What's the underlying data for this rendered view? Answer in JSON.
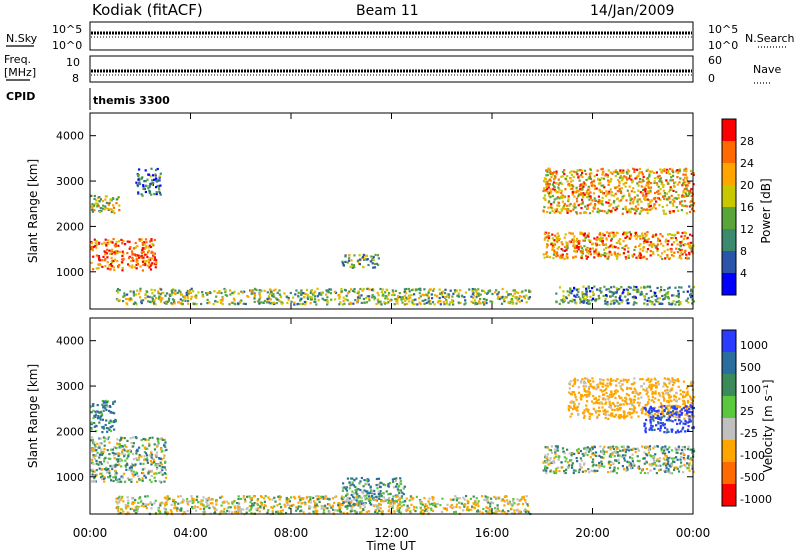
{
  "header": {
    "station": "Kodiak (fitACF)",
    "beam": "Beam 11",
    "date": "14/Jan/2009"
  },
  "top_panels": {
    "nsky_label": "N.Sky",
    "nsearch_label": "N.Search",
    "nsky_ticks": [
      "10^5",
      "10^0"
    ],
    "nsearch_ticks": [
      "10^5",
      "10^0"
    ],
    "freq_label": "Freq.",
    "freq_unit": "[MHz]",
    "freq_ticks": [
      "10",
      "8"
    ],
    "nave_label": "Nave",
    "nave_ticks": [
      "60",
      "0"
    ],
    "cpid_label": "CPID",
    "cpid_value": "themis 3300"
  },
  "chart_data": [
    {
      "type": "heatmap",
      "title": "",
      "xlabel": "Time UT",
      "ylabel": "Slant Range [km]",
      "colorbar_label": "Power [dB]",
      "xlim": [
        0,
        24
      ],
      "ylim": [
        180,
        4500
      ],
      "x_ticks": [
        "00:00",
        "04:00",
        "08:00",
        "12:00",
        "16:00",
        "20:00",
        "00:00"
      ],
      "y_ticks": [
        1000,
        2000,
        3000,
        4000
      ],
      "colorbar_ticks": [
        "4",
        "8",
        "12",
        "16",
        "20",
        "24",
        "28"
      ],
      "colorbar_range": [
        0,
        30
      ],
      "colors": [
        "#0000ff",
        "#2a55a8",
        "#3c8a6e",
        "#5aa53a",
        "#c8c800",
        "#ffa500",
        "#ff6a00",
        "#ff0000"
      ],
      "regions": [
        {
          "t": [
            0.0,
            2.6
          ],
          "r": [
            1050,
            1750
          ],
          "value": 24
        },
        {
          "t": [
            0.0,
            1.2
          ],
          "r": [
            2300,
            2700
          ],
          "value": 16
        },
        {
          "t": [
            1.8,
            2.8
          ],
          "r": [
            2700,
            3300
          ],
          "value": 8
        },
        {
          "t": [
            10.0,
            11.5
          ],
          "r": [
            1100,
            1400
          ],
          "value": 12
        },
        {
          "t": [
            1.0,
            17.5
          ],
          "r": [
            300,
            650
          ],
          "value": 14
        },
        {
          "t": [
            18.0,
            24.0
          ],
          "r": [
            2300,
            3300
          ],
          "value": 20
        },
        {
          "t": [
            18.0,
            24.0
          ],
          "r": [
            1300,
            1900
          ],
          "value": 22
        },
        {
          "t": [
            18.5,
            24.0
          ],
          "r": [
            300,
            700
          ],
          "value": 10
        }
      ]
    },
    {
      "type": "heatmap",
      "title": "",
      "xlabel": "Time UT",
      "ylabel": "Slant Range [km]",
      "colorbar_label": "Velocity [m s⁻¹]",
      "xlim": [
        0,
        24
      ],
      "ylim": [
        180,
        4500
      ],
      "x_ticks": [
        "00:00",
        "04:00",
        "08:00",
        "12:00",
        "16:00",
        "20:00",
        "00:00"
      ],
      "y_ticks": [
        1000,
        2000,
        3000,
        4000
      ],
      "colorbar_ticks": [
        "1000",
        "500",
        "100",
        "25",
        "-25",
        "-100",
        "-500",
        "-1000"
      ],
      "colors": [
        "#2a3cff",
        "#2a6e9e",
        "#3c8a5a",
        "#5ac83c",
        "#c0c0c0",
        "#ffa500",
        "#ff6a00",
        "#ff0000"
      ],
      "regions": [
        {
          "t": [
            0.0,
            3.0
          ],
          "r": [
            900,
            1900
          ],
          "value": 0
        },
        {
          "t": [
            0.0,
            1.0
          ],
          "r": [
            2000,
            2700
          ],
          "value": 120
        },
        {
          "t": [
            10.0,
            12.5
          ],
          "r": [
            400,
            1000
          ],
          "value": 80
        },
        {
          "t": [
            1.0,
            17.5
          ],
          "r": [
            200,
            600
          ],
          "value": -60
        },
        {
          "t": [
            18.0,
            24.0
          ],
          "r": [
            1100,
            1700
          ],
          "value": 0
        },
        {
          "t": [
            19.0,
            24.0
          ],
          "r": [
            2300,
            3200
          ],
          "value": -200
        },
        {
          "t": [
            22.0,
            24.0
          ],
          "r": [
            2000,
            2600
          ],
          "value": 600
        }
      ]
    }
  ]
}
